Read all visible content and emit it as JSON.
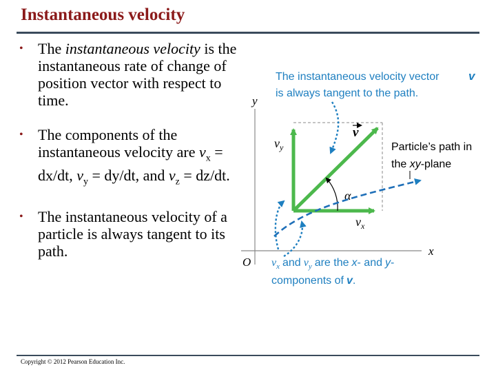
{
  "title": "Instantaneous velocity",
  "bullets": [
    {
      "pre": "The ",
      "em": "instantaneous velocity",
      "post": " is the instantaneous rate of change of position vector with respect to time."
    },
    {
      "text1": "The components of the instantaneous velocity are ",
      "vx": "v",
      "vx_sub": "x",
      "eq1": " = dx/dt, ",
      "vy": "v",
      "vy_sub": "y",
      "eq2": " = dy/dt, and ",
      "vz": "v",
      "vz_sub": "z",
      "eq3": " = dz/dt."
    },
    {
      "text": "The instantaneous velocity of a particle is always tangent to its path."
    }
  ],
  "copyright": "Copyright © 2012 Pearson Education Inc.",
  "figure": {
    "caption_top_line1": "The instantaneous velocity vector",
    "caption_top_v": "v",
    "caption_top_line2": "is always tangent to the path.",
    "y_label": "y",
    "x_label": "x",
    "origin_label": "O",
    "vy_label": "v",
    "vy_sub": "y",
    "vx_label": "v",
    "vx_sub": "x",
    "v_label": "v",
    "alpha_label": "α",
    "path_label_line1": "Particle’s path in",
    "path_label_pre": "the ",
    "path_label_xy": "xy",
    "path_label_post": "-plane",
    "caption_bottom_line1_pre": "and",
    "caption_bottom_line1_mid": "are the",
    "caption_bottom_x": "x",
    "caption_bottom_and": "- and",
    "caption_bottom_y": "y",
    "caption_bottom_dash": "-",
    "caption_bottom_line2": "components of",
    "caption_bottom_end": "."
  },
  "colors": {
    "title": "#8B1A1A",
    "caption": "#1e7fc0",
    "vector": "#4cb84c",
    "path": "#1e6fb8"
  }
}
